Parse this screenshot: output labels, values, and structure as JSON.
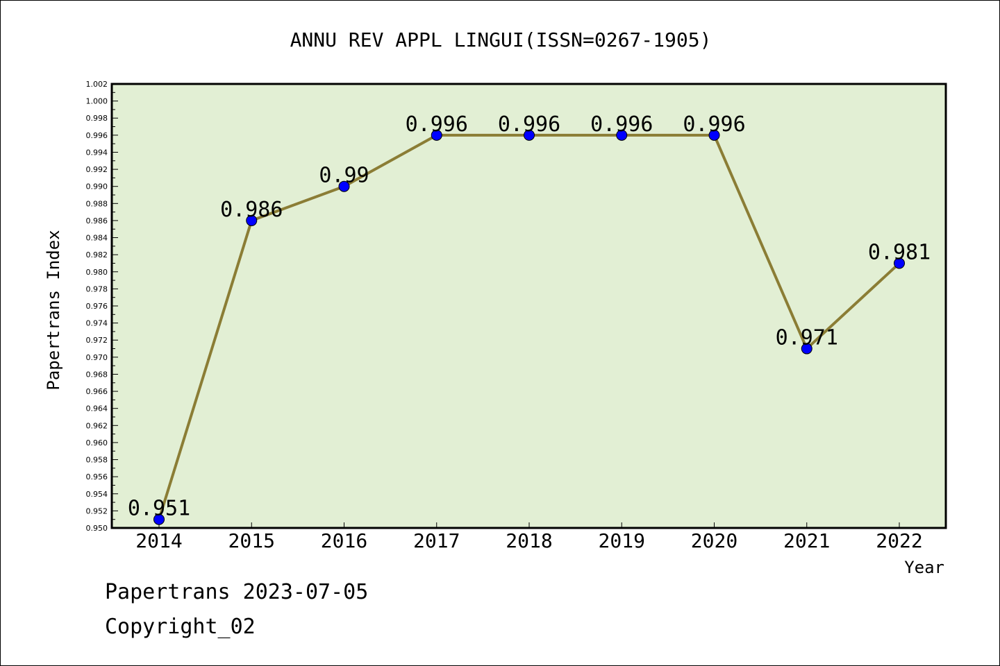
{
  "chart_data": {
    "type": "line",
    "title": "ANNU REV APPL LINGUI(ISSN=0267-1905)",
    "xlabel": "Year",
    "ylabel": "Papertrans Index",
    "categories": [
      "2014",
      "2015",
      "2016",
      "2017",
      "2018",
      "2019",
      "2020",
      "2021",
      "2022"
    ],
    "series": [
      {
        "values": [
          0.951,
          0.986,
          0.99,
          0.996,
          0.996,
          0.996,
          0.996,
          0.971,
          0.981
        ],
        "labels": [
          "0.951",
          "0.986",
          "0.99",
          "0.996",
          "0.996",
          "0.996",
          "0.996",
          "0.971",
          "0.981"
        ]
      }
    ],
    "ylim": [
      0.95,
      1.002
    ],
    "ytick_step": 0.002,
    "yminor_step": 0.001,
    "grid": false,
    "line_color": "#8b7d35",
    "marker_color": "#0000ff",
    "plot_background": "#e2efd4"
  },
  "footer": {
    "line1": "Papertrans 2023-07-05",
    "line2": "Copyright_02"
  }
}
